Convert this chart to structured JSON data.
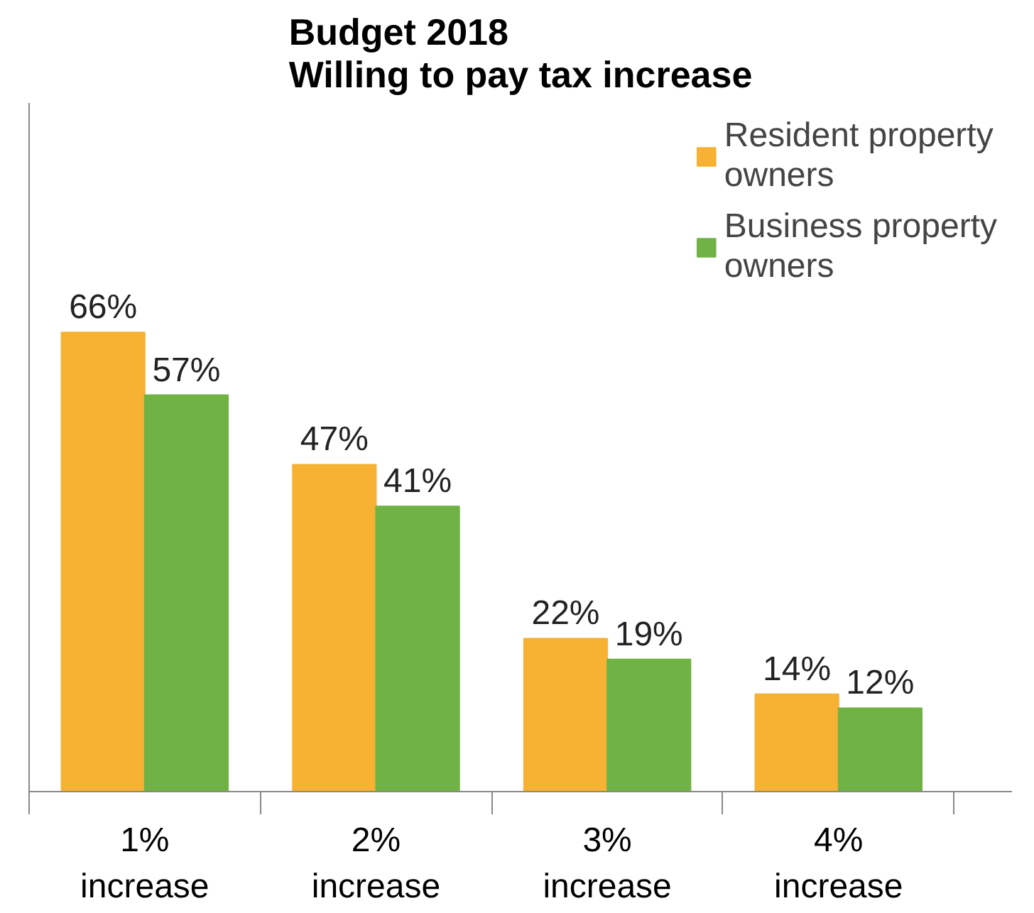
{
  "chart_data": {
    "type": "bar",
    "title": "Budget 2018\nWilling to pay tax increase",
    "categories": [
      "1%\nincrease",
      "2%\nincrease",
      "3%\nincrease",
      "4%\nincrease"
    ],
    "series": [
      {
        "name": "Resident property owners",
        "color": "#f7b133",
        "values": [
          66,
          47,
          22,
          14
        ],
        "value_labels": [
          "66%",
          "47%",
          "22%",
          "14%"
        ]
      },
      {
        "name": "Business property owners",
        "color": "#70b244",
        "values": [
          57,
          41,
          19,
          12
        ],
        "value_labels": [
          "57%",
          "41%",
          "19%",
          "12%"
        ]
      }
    ],
    "grid": false,
    "legend": "top right",
    "tick_labels": "x"
  }
}
